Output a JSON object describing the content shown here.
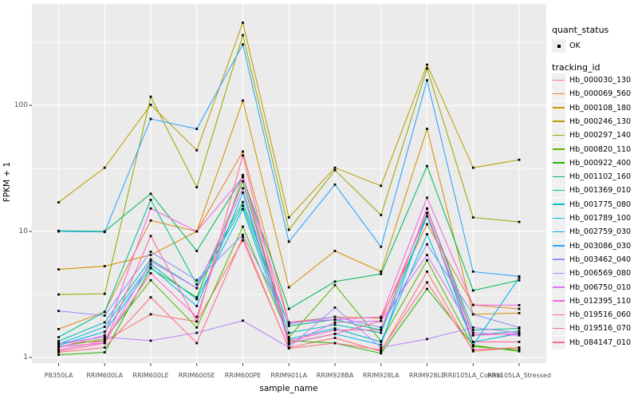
{
  "legend": {
    "quant_status_title": "quant_status",
    "quant_status_value": "OK",
    "tracking_id_title": "tracking_id"
  },
  "colors": {
    "panel_bg": "#EBEBEB",
    "grid": "#FFFFFF",
    "tick_label": "#4D4D4D",
    "legend_key_bg": "#F0F0F0",
    "point_marker": "#000000"
  },
  "chart_data": {
    "type": "line",
    "title": "",
    "xlabel": "sample_name",
    "ylabel": "FPKM + 1",
    "y_scale": "log10",
    "y_ticks": [
      1,
      10,
      100
    ],
    "ylim": [
      0.95,
      640
    ],
    "legend_position": "right",
    "grid": true,
    "marker": "small-black-square (quant_status = OK)",
    "categories": [
      "PB350LA",
      "RRIM600LA",
      "RRIM600LE",
      "RRIM600SE",
      "RRIM600PE",
      "RRIM901LA",
      "RRIM928BA",
      "RRIM928LA",
      "RRIM928LE",
      "RRII105LA_Control",
      "RRII105LA_Stressed"
    ],
    "series": [
      {
        "name": "Hb_000030_130",
        "color": "#F8766D",
        "values": [
          1.3,
          1.35,
          2.2,
          1.93,
          8.5,
          1.2,
          1.43,
          1.12,
          4.8,
          1.12,
          1.2
        ]
      },
      {
        "name": "Hb_000069_560",
        "color": "#E88526",
        "values": [
          1.68,
          2.3,
          12.2,
          10.0,
          43,
          1.9,
          2.1,
          2.05,
          11.4,
          2.61,
          2.43
        ]
      },
      {
        "name": "Hb_000108_180",
        "color": "#D39200",
        "values": [
          5.0,
          5.3,
          6.5,
          10.0,
          109,
          3.6,
          7.0,
          4.8,
          65,
          2.2,
          2.25
        ]
      },
      {
        "name": "Hb_000246_130",
        "color": "#B79F00",
        "values": [
          17,
          32,
          101,
          44,
          452,
          12.9,
          32,
          23,
          210,
          32,
          37
        ]
      },
      {
        "name": "Hb_000297_140",
        "color": "#93AA00",
        "values": [
          3.16,
          3.2,
          117,
          22.4,
          360,
          10.3,
          30.6,
          13.5,
          196,
          12.9,
          11.9
        ]
      },
      {
        "name": "Hb_000820_110",
        "color": "#5EB300",
        "values": [
          1.22,
          1.4,
          4.1,
          1.73,
          10.9,
          1.45,
          3.75,
          1.35,
          5.9,
          1.22,
          1.15
        ]
      },
      {
        "name": "Hb_000922_400",
        "color": "#24B700",
        "values": [
          1.05,
          1.1,
          5.1,
          3.0,
          25,
          1.36,
          1.3,
          1.08,
          3.5,
          1.25,
          1.12
        ]
      },
      {
        "name": "Hb_001102_160",
        "color": "#00BC59",
        "values": [
          10.1,
          10.0,
          19.9,
          7.0,
          27,
          2.43,
          4.0,
          4.6,
          33,
          3.4,
          4.1
        ]
      },
      {
        "name": "Hb_001369_010",
        "color": "#00C08B",
        "values": [
          1.45,
          2.3,
          17.8,
          3.8,
          17.1,
          1.78,
          2.0,
          1.65,
          15.2,
          1.65,
          1.7
        ]
      },
      {
        "name": "Hb_001775_080",
        "color": "#00C0B4",
        "values": [
          1.35,
          1.9,
          6.0,
          3.55,
          16,
          1.57,
          1.82,
          1.57,
          13.2,
          1.5,
          1.62
        ]
      },
      {
        "name": "Hb_001789_100",
        "color": "#00BCD8",
        "values": [
          1.28,
          1.75,
          5.5,
          2.9,
          15,
          1.4,
          1.7,
          1.33,
          9.5,
          1.33,
          1.55
        ]
      },
      {
        "name": "Hb_002759_030",
        "color": "#00B2F3",
        "values": [
          1.25,
          1.6,
          5.2,
          2.56,
          20.3,
          1.3,
          1.54,
          1.26,
          14,
          1.25,
          4.3
        ]
      },
      {
        "name": "Hb_003086_030",
        "color": "#29A3FF",
        "values": [
          10.0,
          9.9,
          78,
          65,
          304,
          8.3,
          23.5,
          7.55,
          158,
          4.8,
          4.4
        ]
      },
      {
        "name": "Hb_003462_040",
        "color": "#8B93FF",
        "values": [
          2.34,
          2.15,
          6.9,
          4.1,
          9.4,
          1.85,
          2.1,
          1.73,
          7.9,
          2.2,
          1.73
        ]
      },
      {
        "name": "Hb_006569_080",
        "color": "#B983FF",
        "values": [
          1.3,
          1.45,
          1.36,
          1.57,
          1.96,
          1.2,
          2.49,
          1.2,
          1.4,
          1.73,
          1.57
        ]
      },
      {
        "name": "Hb_006750_010",
        "color": "#DC71FA",
        "values": [
          1.22,
          1.3,
          5.8,
          3.55,
          22,
          1.27,
          1.9,
          1.95,
          6.5,
          1.57,
          1.5
        ]
      },
      {
        "name": "Hb_012395_110",
        "color": "#F265E7",
        "values": [
          1.2,
          1.5,
          15.2,
          10.0,
          27,
          1.9,
          2.0,
          2.1,
          18.5,
          2.61,
          2.6
        ]
      },
      {
        "name": "Hb_019516_060",
        "color": "#FF61C7",
        "values": [
          1.15,
          1.35,
          4.66,
          2.1,
          28,
          1.36,
          1.65,
          1.65,
          15.2,
          1.5,
          1.55
        ]
      },
      {
        "name": "Hb_019516_070",
        "color": "#FF669F",
        "values": [
          1.12,
          1.3,
          9.2,
          1.93,
          40,
          1.3,
          1.54,
          1.95,
          14,
          1.33,
          1.33
        ]
      },
      {
        "name": "Hb_084147_010",
        "color": "#FF6B82",
        "values": [
          1.1,
          1.2,
          3.0,
          1.3,
          9.0,
          1.18,
          1.3,
          1.15,
          3.94,
          1.15,
          1.2
        ]
      }
    ]
  }
}
